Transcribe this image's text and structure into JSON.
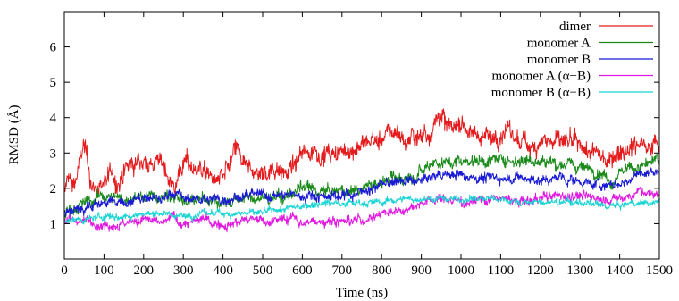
{
  "chart_data": {
    "type": "line",
    "title": "",
    "xlabel": "Time (ns)",
    "ylabel": "RMSD (Å)",
    "xlim": [
      0,
      1500
    ],
    "ylim": [
      0,
      7
    ],
    "xticks": [
      0,
      100,
      200,
      300,
      400,
      500,
      600,
      700,
      800,
      900,
      1000,
      1100,
      1200,
      1300,
      1400,
      1500
    ],
    "yticks": [
      1,
      2,
      3,
      4,
      5,
      6
    ],
    "grid": false,
    "legend_position": "top-right",
    "series": [
      {
        "name": "dimer",
        "color": "#e41a1c",
        "noise": 0.28,
        "x": [
          0,
          10,
          20,
          30,
          40,
          50,
          60,
          70,
          80,
          100,
          120,
          140,
          160,
          180,
          200,
          220,
          250,
          270,
          280,
          290,
          300,
          320,
          340,
          360,
          380,
          400,
          420,
          435,
          450,
          470,
          500,
          530,
          560,
          580,
          600,
          620,
          650,
          680,
          700,
          720,
          750,
          780,
          800,
          820,
          840,
          860,
          880,
          900,
          920,
          940,
          950,
          960,
          980,
          1000,
          1020,
          1050,
          1080,
          1100,
          1120,
          1150,
          1180,
          1200,
          1230,
          1260,
          1290,
          1310,
          1330,
          1350,
          1370,
          1400,
          1430,
          1460,
          1480,
          1500
        ],
        "y": [
          1.8,
          2.4,
          2.1,
          2.3,
          2.8,
          3.2,
          2.6,
          2.1,
          1.9,
          2.2,
          2.4,
          2.1,
          2.6,
          2.7,
          2.8,
          2.7,
          2.7,
          2.2,
          2.0,
          2.5,
          2.7,
          2.6,
          2.6,
          2.4,
          2.2,
          2.3,
          2.7,
          3.2,
          2.6,
          2.5,
          2.4,
          2.6,
          2.5,
          2.6,
          3.0,
          3.1,
          3.0,
          2.9,
          3.0,
          3.1,
          3.2,
          3.4,
          3.3,
          3.6,
          3.6,
          3.3,
          3.5,
          3.5,
          3.6,
          4.0,
          4.1,
          3.8,
          3.7,
          3.9,
          3.6,
          3.5,
          3.4,
          3.6,
          3.6,
          3.3,
          3.2,
          3.4,
          3.3,
          3.3,
          3.2,
          3.1,
          3.0,
          2.9,
          2.8,
          3.1,
          3.2,
          3.3,
          3.3,
          3.2
        ]
      },
      {
        "name": "monomer A",
        "color": "#1a8a1a",
        "noise": 0.18,
        "x": [
          0,
          30,
          60,
          100,
          150,
          200,
          250,
          280,
          300,
          350,
          400,
          450,
          500,
          550,
          580,
          600,
          650,
          700,
          750,
          800,
          850,
          900,
          930,
          950,
          1000,
          1050,
          1100,
          1150,
          1200,
          1250,
          1300,
          1350,
          1380,
          1400,
          1450,
          1500
        ],
        "y": [
          1.3,
          1.5,
          1.6,
          1.8,
          1.7,
          1.8,
          1.7,
          1.9,
          1.6,
          1.7,
          1.6,
          1.7,
          1.7,
          1.7,
          1.9,
          2.0,
          1.9,
          1.9,
          2.0,
          2.2,
          2.3,
          2.5,
          2.8,
          2.7,
          2.8,
          2.8,
          2.8,
          2.8,
          2.8,
          2.7,
          2.6,
          2.5,
          2.2,
          2.5,
          2.6,
          2.8
        ]
      },
      {
        "name": "monomer B",
        "color": "#1a1ad4",
        "noise": 0.15,
        "x": [
          0,
          30,
          60,
          100,
          150,
          200,
          250,
          280,
          300,
          350,
          400,
          450,
          500,
          550,
          600,
          650,
          700,
          750,
          800,
          850,
          900,
          950,
          1000,
          1050,
          1100,
          1150,
          1200,
          1250,
          1300,
          1350,
          1400,
          1430,
          1450,
          1500
        ],
        "y": [
          1.3,
          1.4,
          1.5,
          1.6,
          1.6,
          1.7,
          1.7,
          1.9,
          1.7,
          1.7,
          1.7,
          1.8,
          1.8,
          1.8,
          1.8,
          1.8,
          1.8,
          1.9,
          2.1,
          2.2,
          2.2,
          2.4,
          2.4,
          2.3,
          2.3,
          2.3,
          2.2,
          2.3,
          2.2,
          2.1,
          2.1,
          2.3,
          2.4,
          2.5
        ]
      },
      {
        "name": "monomer A (α−B)",
        "color": "#e01ae0",
        "noise": 0.14,
        "x": [
          0,
          50,
          100,
          150,
          200,
          250,
          270,
          300,
          350,
          400,
          450,
          500,
          550,
          580,
          600,
          650,
          700,
          750,
          800,
          850,
          900,
          950,
          1000,
          1050,
          1100,
          1150,
          1200,
          1250,
          1300,
          1350,
          1400,
          1450,
          1500
        ],
        "y": [
          1.1,
          1.1,
          1.0,
          1.0,
          1.1,
          1.0,
          1.2,
          1.0,
          1.1,
          1.0,
          1.1,
          1.1,
          1.1,
          1.2,
          1.0,
          1.1,
          1.1,
          1.1,
          1.3,
          1.4,
          1.6,
          1.7,
          1.6,
          1.7,
          1.7,
          1.6,
          1.7,
          1.8,
          1.8,
          1.7,
          1.7,
          1.9,
          1.8
        ]
      },
      {
        "name": "monomer B (α−B)",
        "color": "#1ad4d4",
        "noise": 0.1,
        "x": [
          0,
          50,
          100,
          150,
          200,
          250,
          300,
          350,
          400,
          450,
          500,
          550,
          600,
          650,
          700,
          750,
          800,
          850,
          900,
          950,
          1000,
          1050,
          1100,
          1150,
          1200,
          1250,
          1300,
          1350,
          1400,
          1450,
          1500
        ],
        "y": [
          1.1,
          1.1,
          1.2,
          1.2,
          1.3,
          1.3,
          1.2,
          1.3,
          1.3,
          1.3,
          1.3,
          1.4,
          1.5,
          1.6,
          1.6,
          1.6,
          1.6,
          1.7,
          1.7,
          1.7,
          1.7,
          1.7,
          1.7,
          1.6,
          1.6,
          1.6,
          1.6,
          1.5,
          1.5,
          1.6,
          1.6
        ]
      }
    ]
  }
}
